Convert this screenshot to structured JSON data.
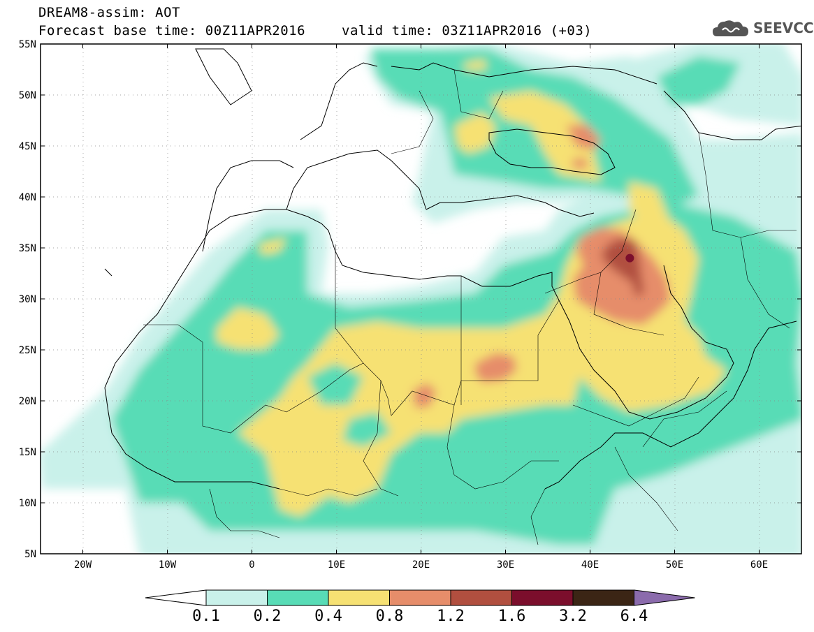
{
  "header": {
    "title": "DREAM8-assim: AOT",
    "base_time": "Forecast base time: 00Z11APR2016",
    "valid_time": "valid time: 03Z11APR2016 (+03)",
    "logo_text": "SEEVCCC"
  },
  "map": {
    "lat_labels": [
      "55N",
      "50N",
      "45N",
      "40N",
      "35N",
      "30N",
      "25N",
      "20N",
      "15N",
      "10N",
      "5N"
    ],
    "lon_labels": [
      "20W",
      "10W",
      "0",
      "10E",
      "20E",
      "30E",
      "40E",
      "50E",
      "60E"
    ],
    "lon_range": [
      -25,
      65
    ],
    "lat_range": [
      5,
      55
    ],
    "peak_marker": {
      "lon": 44.7,
      "lat": 34.0
    }
  },
  "colorbar": {
    "levels": [
      "0.1",
      "0.2",
      "0.4",
      "0.8",
      "1.2",
      "1.6",
      "3.2",
      "6.4"
    ],
    "colors": [
      "#ffffff",
      "#c9f1ea",
      "#58dcb6",
      "#f6e173",
      "#e68d6a",
      "#b14f3f",
      "#7b0e2c",
      "#3b2515",
      "#8b6bac"
    ]
  }
}
